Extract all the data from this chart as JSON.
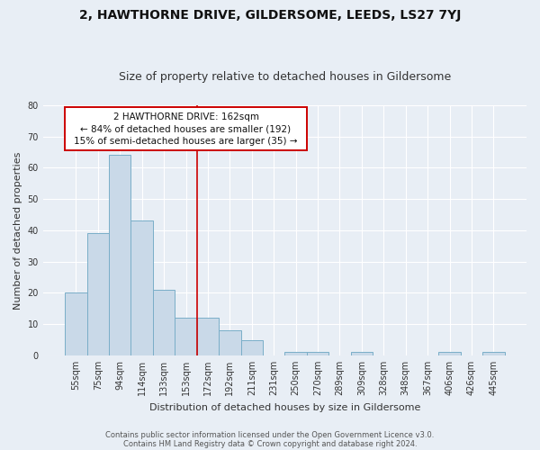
{
  "title": "2, HAWTHORNE DRIVE, GILDERSOME, LEEDS, LS27 7YJ",
  "subtitle": "Size of property relative to detached houses in Gildersome",
  "xlabel": "Distribution of detached houses by size in Gildersome",
  "ylabel": "Number of detached properties",
  "bar_labels": [
    "55sqm",
    "75sqm",
    "94sqm",
    "114sqm",
    "133sqm",
    "153sqm",
    "172sqm",
    "192sqm",
    "211sqm",
    "231sqm",
    "250sqm",
    "270sqm",
    "289sqm",
    "309sqm",
    "328sqm",
    "348sqm",
    "367sqm",
    "406sqm",
    "426sqm",
    "445sqm"
  ],
  "bar_values": [
    20,
    39,
    64,
    43,
    21,
    12,
    12,
    8,
    5,
    0,
    1,
    1,
    0,
    1,
    0,
    0,
    0,
    1,
    0,
    1
  ],
  "bar_color": "#c9d9e8",
  "bar_edge_color": "#7aaec8",
  "bg_color": "#e8eef5",
  "grid_color": "#ffffff",
  "red_line_x": 5.5,
  "annotation_line1": "2 HAWTHORNE DRIVE: 162sqm",
  "annotation_line2": "← 84% of detached houses are smaller (192)",
  "annotation_line3": "15% of semi-detached houses are larger (35) →",
  "annotation_box_color": "#ffffff",
  "annotation_border_color": "#cc0000",
  "red_line_color": "#cc0000",
  "footer_line1": "Contains HM Land Registry data © Crown copyright and database right 2024.",
  "footer_line2": "Contains public sector information licensed under the Open Government Licence v3.0.",
  "ylim_max": 80,
  "yticks": [
    0,
    10,
    20,
    30,
    40,
    50,
    60,
    70,
    80
  ],
  "title_fontsize": 10,
  "subtitle_fontsize": 9,
  "axis_label_fontsize": 8,
  "tick_fontsize": 7,
  "annotation_fontsize": 7.5,
  "footer_fontsize": 6
}
